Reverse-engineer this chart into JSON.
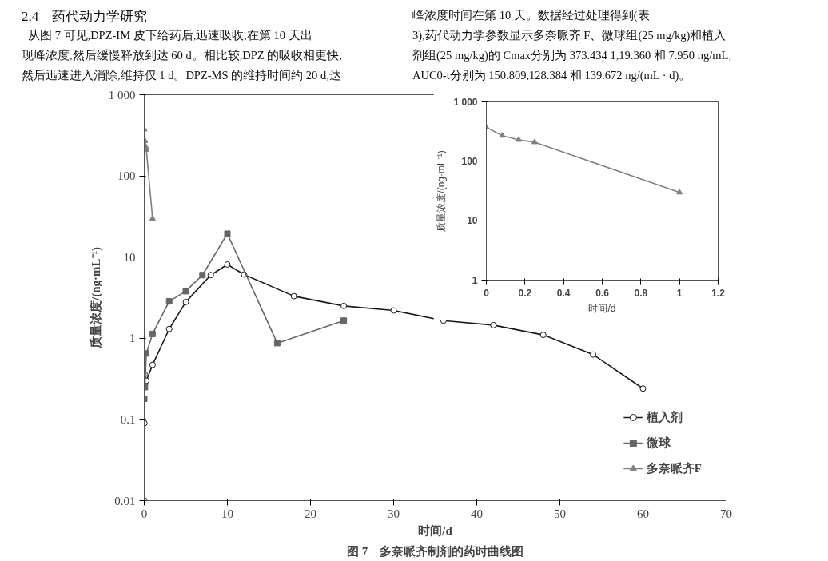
{
  "chart_data": [
    {
      "type": "line",
      "title": "图 7　多奈哌齐制剂的药时曲线图",
      "xlabel": "时间/d",
      "ylabel": "质量浓度/(ng·mL⁻¹)",
      "log": "y",
      "xlim": [
        0,
        70
      ],
      "xticks": [
        0,
        10,
        20,
        30,
        40,
        50,
        60,
        70
      ],
      "ylim": [
        0.01,
        1000
      ],
      "yticks": [
        0.01,
        0.1,
        1,
        10,
        100,
        {
          "value": 1000,
          "label": "1 000"
        }
      ],
      "legend": "bottom right",
      "annotations": [
        "2.4　药代动力学研究",
        "从图 7 可见,DPZ-IM 皮下给药后,迅速吸收,在第 10 天出",
        "现峰浓度,然后缓慢释放到达 60 d。相比较,DPZ 的吸收相更快,",
        "然后迅速进入消除,维持仅 1 d。DPZ-MS 的维持时间约 20 d,达",
        "峰浓度时间在第 10 天。数据经过处理得到(表",
        "3),药代动力学参数显示多奈哌齐 F、微球组(25 mg/kg)和植入",
        "剂组(25 mg/kg)的 Cmax分别为 373.434 1,19.360 和 7.950 ng/mL,",
        "AUC0-t分别为 150.809,128.384 和 139.672 ng/(mL · d)。"
      ],
      "series": [
        {
          "name": "植入剂",
          "color": "#1a1a1a",
          "marker": "circle",
          "x": [
            0,
            0.02,
            0.04,
            0.25,
            1,
            3,
            5,
            8,
            10,
            12,
            18,
            24,
            30,
            36,
            42,
            48,
            54,
            60
          ],
          "values": [
            0.01,
            0.09,
            0.36,
            0.3,
            0.47,
            1.3,
            2.8,
            6,
            8.1,
            6.1,
            3.3,
            2.5,
            2.2,
            1.65,
            1.45,
            1.1,
            0.63,
            0.24
          ]
        },
        {
          "name": "微球",
          "color": "#666666",
          "marker": "square",
          "x": [
            0,
            0.08,
            0.25,
            1,
            3,
            5,
            7,
            10,
            16,
            24
          ],
          "values": [
            0.18,
            0.25,
            0.65,
            1.13,
            2.85,
            3.8,
            6,
            19.4,
            0.87,
            1.65
          ]
        },
        {
          "name": "多奈哌齐F",
          "color": "#808080",
          "marker": "triangle",
          "x": [
            0,
            0.083,
            0.167,
            0.25,
            1
          ],
          "values": [
            373,
            270,
            230,
            210,
            29.9
          ]
        }
      ]
    },
    {
      "type": "line",
      "xlabel": "时间/d",
      "ylabel": "质量浓度/(ng·mL⁻¹)",
      "log": "y",
      "xlim": [
        0,
        1.2
      ],
      "xticks": [
        0,
        0.2,
        0.4,
        0.6,
        0.8,
        1,
        1.2
      ],
      "ylim": [
        1,
        1000
      ],
      "yticks": [
        1,
        10,
        100,
        {
          "value": 1000,
          "label": "1 000"
        }
      ],
      "series": [
        {
          "color": "#808080",
          "marker": "triangle",
          "x": [
            0,
            0.083,
            0.167,
            0.25,
            1
          ],
          "values": [
            373,
            270,
            230,
            210,
            29.9
          ]
        }
      ]
    }
  ]
}
